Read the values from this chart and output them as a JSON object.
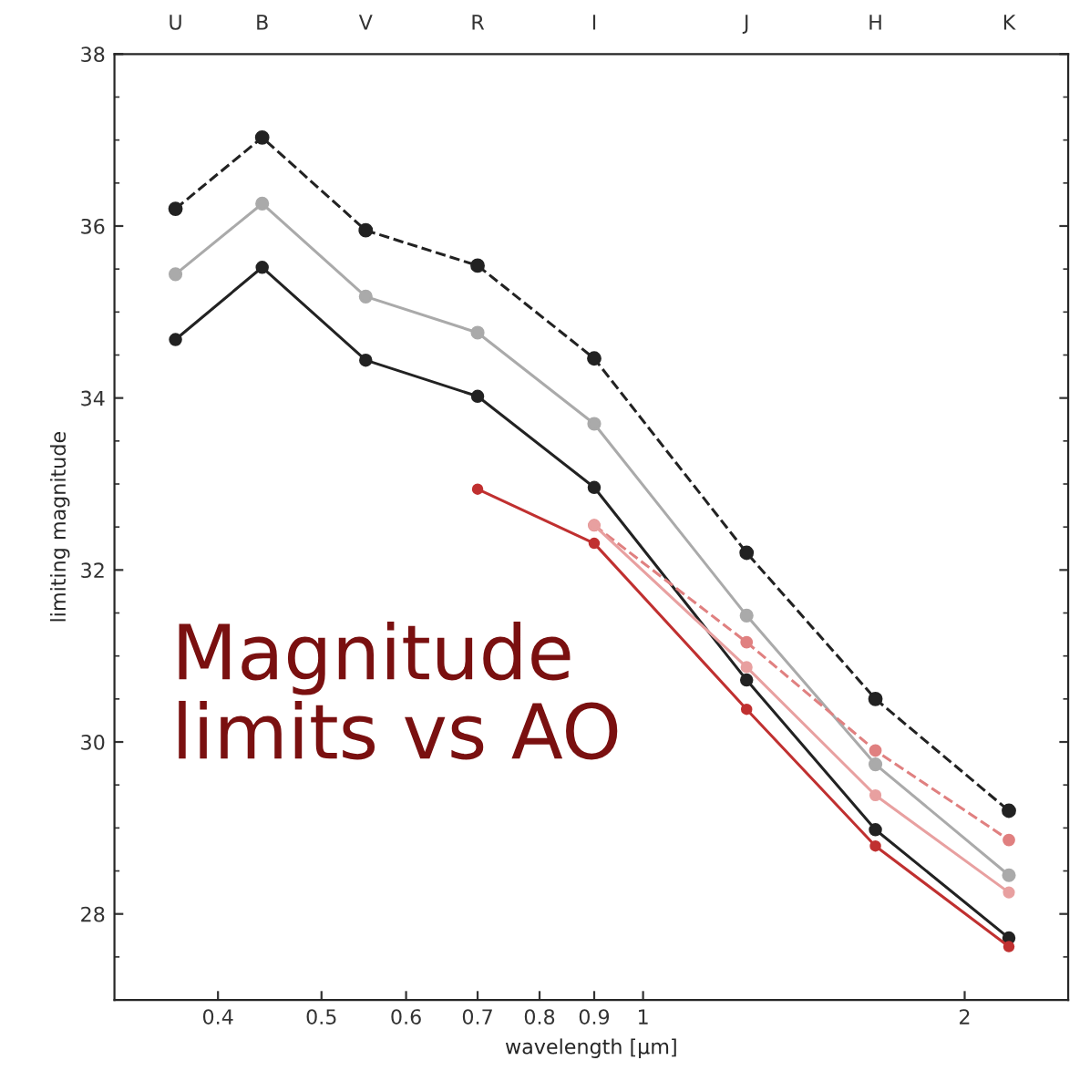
{
  "chart_data": {
    "type": "line",
    "xlabel": "wavelength [μm]",
    "ylabel": "limiting magnitude",
    "log": "x",
    "marker": "circle",
    "grid": false,
    "xlim": [
      0.32,
      2.5
    ],
    "xticks": [
      0.4,
      0.5,
      0.6,
      0.7,
      0.8,
      0.9,
      1,
      2
    ],
    "ylim": [
      27,
      38
    ],
    "yticks": [
      28,
      30,
      32,
      34,
      36,
      38
    ],
    "annotations": [
      "Magnitude\nlimits vs AO",
      "U",
      "B",
      "V",
      "R",
      "I",
      "J",
      "H",
      "K"
    ],
    "series": [
      {
        "color": "#222222",
        "line_style": "dashed",
        "x": [
          0.365,
          0.44,
          0.55,
          0.7,
          0.9,
          1.25,
          1.65,
          2.2
        ],
        "values": [
          36.2,
          37.03,
          35.95,
          35.54,
          34.46,
          32.2,
          30.5,
          29.2
        ]
      },
      {
        "color": "#aaaaaa",
        "line_style": "solid",
        "x": [
          0.365,
          0.44,
          0.55,
          0.7,
          0.9,
          1.25,
          1.65,
          2.2
        ],
        "values": [
          35.44,
          36.26,
          35.18,
          34.76,
          33.7,
          31.47,
          29.74,
          28.45
        ]
      },
      {
        "color": "#222222",
        "line_style": "solid",
        "x": [
          0.365,
          0.44,
          0.55,
          0.7,
          0.9,
          1.25,
          1.65,
          2.2
        ],
        "values": [
          34.68,
          35.52,
          34.44,
          34.02,
          32.96,
          30.72,
          28.98,
          27.72
        ]
      },
      {
        "color": "#e08080",
        "line_style": "dashed",
        "x": [
          0.9,
          1.25,
          1.65,
          2.2
        ],
        "values": [
          32.52,
          31.16,
          29.9,
          28.86
        ]
      },
      {
        "color": "#e8a0a0",
        "line_style": "solid",
        "x": [
          0.9,
          1.25,
          1.65,
          2.2
        ],
        "values": [
          32.52,
          30.87,
          29.38,
          28.25
        ]
      },
      {
        "color": "#c03030",
        "line_style": "solid",
        "x": [
          0.7,
          0.9,
          1.25,
          1.65,
          2.2
        ],
        "values": [
          32.94,
          32.31,
          30.38,
          28.79,
          27.62
        ]
      }
    ]
  }
}
